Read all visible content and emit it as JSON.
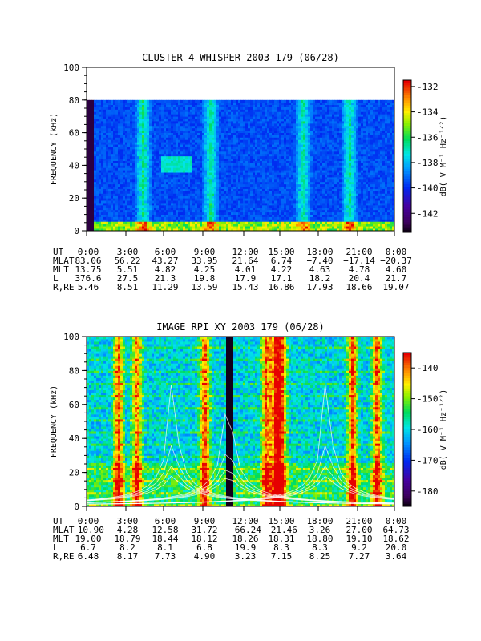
{
  "chart_data": [
    {
      "type": "heatmap",
      "title": "CLUSTER 4 WHISPER 2003 179 (06/28)",
      "ylabel": "FREQUENCY (kHz)",
      "ylim": [
        0,
        100
      ],
      "yticks": [
        "0",
        "20",
        "40",
        "60",
        "80",
        "100"
      ],
      "data_top_khz": 80,
      "colorbar": {
        "label": "dB( V M⁻¹ Hz⁻¹ᐟ²)",
        "range": [
          -143.5,
          -131.5
        ],
        "ticks": [
          "-132",
          "-134",
          "-136",
          "-138",
          "-140",
          "-142"
        ]
      },
      "ephemeris": {
        "labels": [
          "UT",
          "MLAT",
          "MLT",
          "L",
          "R,RE"
        ],
        "rows": [
          [
            "0:00",
            "3:00",
            "6:00",
            "9:00",
            "12:00",
            "15:00",
            "18:00",
            "21:00",
            "0:00"
          ],
          [
            "83.06",
            "56.22",
            "43.27",
            "33.95",
            "21.64",
            "6.74",
            "−7.40",
            "−17.14",
            "−20.37"
          ],
          [
            "13.75",
            "5.51",
            "4.82",
            "4.25",
            "4.01",
            "4.22",
            "4.63",
            "4.78",
            "4.60"
          ],
          [
            "376.6",
            "27.5",
            "21.3",
            "19.8",
            "17.9",
            "17.1",
            "18.2",
            "20.4",
            "21.7"
          ],
          [
            "5.46",
            "8.51",
            "11.29",
            "13.59",
            "15.43",
            "16.86",
            "17.93",
            "18.66",
            "19.07"
          ]
        ]
      }
    },
    {
      "type": "heatmap",
      "title": "IMAGE RPI XY 2003 179 (06/28)",
      "ylabel": "FREQUENCY (kHz)",
      "ylim": [
        0,
        100
      ],
      "yticks": [
        "0",
        "20",
        "40",
        "60",
        "80",
        "100"
      ],
      "data_top_khz": 100,
      "colorbar": {
        "label": "dB( V M⁻¹ Hz⁻¹ᐟ²)",
        "range": [
          -185,
          -135
        ],
        "ticks": [
          "-140",
          "-150",
          "-160",
          "-170",
          "-180"
        ]
      },
      "ephemeris": {
        "labels": [
          "UT",
          "MLAT",
          "MLT",
          "L",
          "R,RE"
        ],
        "rows": [
          [
            "0:00",
            "3:00",
            "6:00",
            "9:00",
            "12:00",
            "15:00",
            "18:00",
            "21:00",
            "0:00"
          ],
          [
            "−10.90",
            "4.28",
            "12.58",
            "31.72",
            "−66.24",
            "−21.46",
            "3.26",
            "27.00",
            "64.73"
          ],
          [
            "19.00",
            "18.79",
            "18.44",
            "18.12",
            "18.26",
            "18.31",
            "18.80",
            "19.10",
            "18.62"
          ],
          [
            "6.7",
            "8.2",
            "8.1",
            "6.8",
            "19.9",
            "8.3",
            "8.3",
            "9.2",
            "20.0"
          ],
          [
            "6.48",
            "8.17",
            "7.73",
            "4.90",
            "3.23",
            "7.15",
            "8.25",
            "7.27",
            "3.64"
          ]
        ]
      }
    }
  ]
}
